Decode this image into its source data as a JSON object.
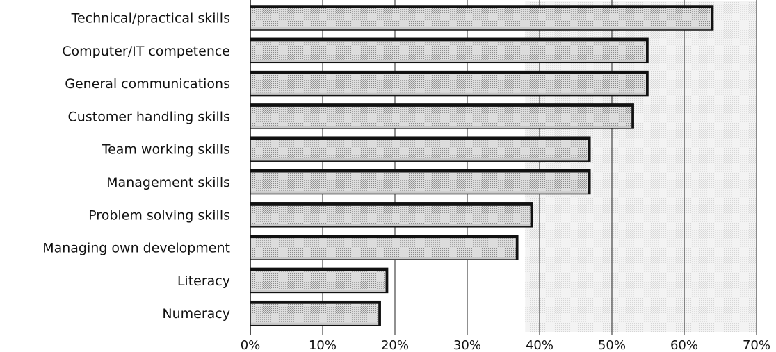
{
  "chart_data": {
    "type": "bar",
    "orientation": "horizontal",
    "categories": [
      "Technical/practical skills",
      "Computer/IT competence",
      "General communications",
      "Customer handling skills",
      "Team working skills",
      "Management skills",
      "Problem solving skills",
      "Managing own development",
      "Literacy",
      "Numeracy"
    ],
    "values": [
      64,
      55,
      55,
      53,
      47,
      47,
      39,
      37,
      19,
      18
    ],
    "unit": "%",
    "xlim": [
      0,
      70
    ],
    "xticks": [
      "0%",
      "10%",
      "20%",
      "30%",
      "40%",
      "50%",
      "60%",
      "70%"
    ],
    "grid": "vertical",
    "legend": "none",
    "title": "",
    "xlabel": "",
    "ylabel": "",
    "colors": {
      "bar_fill": "#c9c9c9",
      "bar_edge": "#111111",
      "grid": "#222222"
    }
  }
}
